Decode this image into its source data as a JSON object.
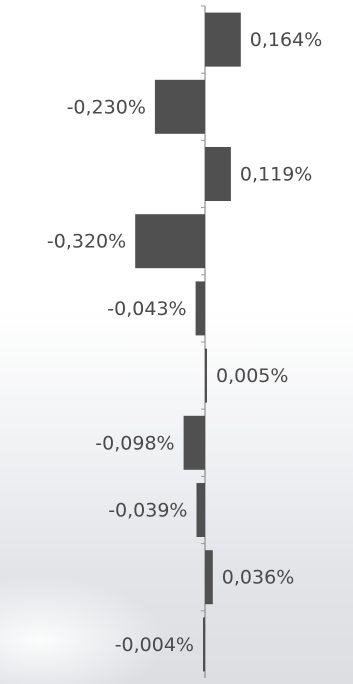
{
  "chart_data": {
    "type": "bar",
    "orientation": "horizontal",
    "categories": [
      "",
      "",
      "",
      "",
      "",
      "",
      "",
      "",
      "",
      ""
    ],
    "values": [
      0.164,
      -0.23,
      0.119,
      -0.32,
      -0.043,
      0.005,
      -0.098,
      -0.039,
      0.036,
      -0.004
    ],
    "data_labels": [
      "0,164%",
      "-0,230%",
      "0,119%",
      "-0,320%",
      "-0,043%",
      "0,005%",
      "-0,098%",
      "-0,039%",
      "0,036%",
      "-0,004%"
    ],
    "title": "",
    "xlabel": "",
    "ylabel": "",
    "grid": false,
    "legend": "none",
    "bar_color": "#505050",
    "label_color": "#4a4a4a"
  }
}
